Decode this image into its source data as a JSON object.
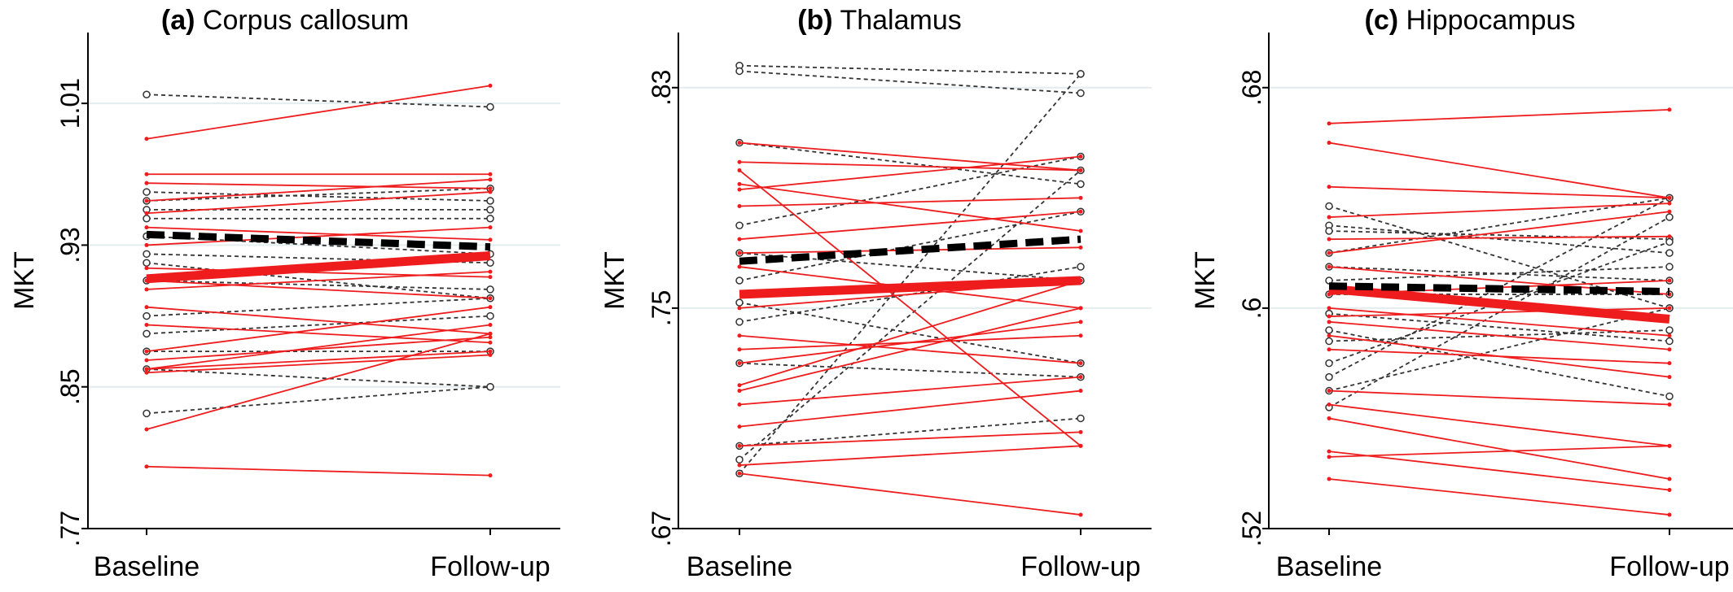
{
  "chart_data": [
    {
      "type": "line",
      "panel_letter": "(a)",
      "title": "Corpus callosum",
      "categories": [
        "Baseline",
        "Follow-up"
      ],
      "ylabel": "MKT",
      "yticks": [
        0.77,
        0.85,
        0.93,
        1.01
      ],
      "ytick_labels": [
        ".77",
        ".85",
        ".93",
        "1.01"
      ],
      "ylim": [
        0.77,
        1.05
      ],
      "grid": true,
      "colors": {
        "group_red": "#ee1c1c",
        "group_black": "#333333",
        "grid": "#e3ecee"
      },
      "series_red_individual": [
        [
          0.99,
          1.02
        ],
        [
          0.97,
          0.97
        ],
        [
          0.965,
          0.962
        ],
        [
          0.955,
          0.967
        ],
        [
          0.948,
          0.96
        ],
        [
          0.94,
          0.933
        ],
        [
          0.93,
          0.94
        ],
        [
          0.917,
          0.912
        ],
        [
          0.91,
          0.9
        ],
        [
          0.905,
          0.915
        ],
        [
          0.895,
          0.88
        ],
        [
          0.885,
          0.875
        ],
        [
          0.87,
          0.895
        ],
        [
          0.865,
          0.878
        ],
        [
          0.86,
          0.87
        ],
        [
          0.86,
          0.885
        ],
        [
          0.858,
          0.868
        ],
        [
          0.826,
          0.88
        ],
        [
          0.805,
          0.8
        ]
      ],
      "series_black_individual": [
        [
          1.015,
          1.008
        ],
        [
          0.96,
          0.955
        ],
        [
          0.955,
          0.962
        ],
        [
          0.95,
          0.95
        ],
        [
          0.945,
          0.945
        ],
        [
          0.935,
          0.925
        ],
        [
          0.925,
          0.92
        ],
        [
          0.92,
          0.9
        ],
        [
          0.91,
          0.905
        ],
        [
          0.89,
          0.9
        ],
        [
          0.88,
          0.89
        ],
        [
          0.87,
          0.87
        ],
        [
          0.86,
          0.85
        ],
        [
          0.835,
          0.85
        ]
      ],
      "series_red_mean": [
        0.911,
        0.924
      ],
      "series_black_mean": [
        0.936,
        0.929
      ]
    },
    {
      "type": "line",
      "panel_letter": "(b)",
      "title": "Thalamus",
      "categories": [
        "Baseline",
        "Follow-up"
      ],
      "ylabel": "MKT",
      "yticks": [
        0.67,
        0.75,
        0.83
      ],
      "ytick_labels": [
        ".67",
        ".75",
        ".83"
      ],
      "ylim": [
        0.67,
        0.85
      ],
      "grid": true,
      "colors": {
        "group_red": "#ee1c1c",
        "group_black": "#333333",
        "grid": "#e3ecee"
      },
      "series_red_individual": [
        [
          0.81,
          0.8
        ],
        [
          0.803,
          0.8
        ],
        [
          0.8,
          0.7
        ],
        [
          0.795,
          0.778
        ],
        [
          0.793,
          0.805
        ],
        [
          0.787,
          0.79
        ],
        [
          0.775,
          0.785
        ],
        [
          0.77,
          0.772
        ],
        [
          0.765,
          0.75
        ],
        [
          0.75,
          0.76
        ],
        [
          0.74,
          0.73
        ],
        [
          0.735,
          0.74
        ],
        [
          0.73,
          0.745
        ],
        [
          0.722,
          0.76
        ],
        [
          0.72,
          0.75
        ],
        [
          0.715,
          0.725
        ],
        [
          0.707,
          0.72
        ],
        [
          0.7,
          0.705
        ],
        [
          0.693,
          0.7
        ],
        [
          0.69,
          0.675
        ]
      ],
      "series_black_individual": [
        [
          0.838,
          0.835
        ],
        [
          0.836,
          0.828
        ],
        [
          0.81,
          0.795
        ],
        [
          0.78,
          0.805
        ],
        [
          0.77,
          0.76
        ],
        [
          0.76,
          0.785
        ],
        [
          0.752,
          0.73
        ],
        [
          0.745,
          0.765
        ],
        [
          0.73,
          0.725
        ],
        [
          0.695,
          0.8
        ],
        [
          0.69,
          0.835
        ],
        [
          0.7,
          0.71
        ]
      ],
      "series_red_mean": [
        0.755,
        0.76
      ],
      "series_black_mean": [
        0.767,
        0.775
      ]
    },
    {
      "type": "line",
      "panel_letter": "(c)",
      "title": "Hippocampus",
      "categories": [
        "Baseline",
        "Follow-up"
      ],
      "ylabel": "MKT",
      "yticks": [
        0.52,
        0.6,
        0.68
      ],
      "ytick_labels": [
        ".52",
        ".6",
        ".68"
      ],
      "ylim": [
        0.52,
        0.7
      ],
      "grid": true,
      "colors": {
        "group_red": "#ee1c1c",
        "group_black": "#333333",
        "grid": "#e3ecee"
      },
      "series_red_individual": [
        [
          0.667,
          0.672
        ],
        [
          0.66,
          0.64
        ],
        [
          0.644,
          0.64
        ],
        [
          0.633,
          0.638
        ],
        [
          0.625,
          0.626
        ],
        [
          0.62,
          0.635
        ],
        [
          0.615,
          0.605
        ],
        [
          0.605,
          0.61
        ],
        [
          0.6,
          0.59
        ],
        [
          0.597,
          0.6
        ],
        [
          0.595,
          0.585
        ],
        [
          0.59,
          0.575
        ],
        [
          0.585,
          0.58
        ],
        [
          0.57,
          0.565
        ],
        [
          0.565,
          0.55
        ],
        [
          0.56,
          0.538
        ],
        [
          0.548,
          0.534
        ],
        [
          0.546,
          0.55
        ],
        [
          0.538,
          0.525
        ]
      ],
      "series_black_individual": [
        [
          0.637,
          0.6
        ],
        [
          0.63,
          0.62
        ],
        [
          0.628,
          0.625
        ],
        [
          0.62,
          0.64
        ],
        [
          0.615,
          0.61
        ],
        [
          0.61,
          0.615
        ],
        [
          0.605,
          0.605
        ],
        [
          0.598,
          0.588
        ],
        [
          0.592,
          0.568
        ],
        [
          0.588,
          0.592
        ],
        [
          0.58,
          0.624
        ],
        [
          0.575,
          0.64
        ],
        [
          0.57,
          0.6
        ],
        [
          0.564,
          0.633
        ]
      ],
      "series_red_mean": [
        0.607,
        0.596
      ],
      "series_black_mean": [
        0.608,
        0.606
      ]
    }
  ]
}
